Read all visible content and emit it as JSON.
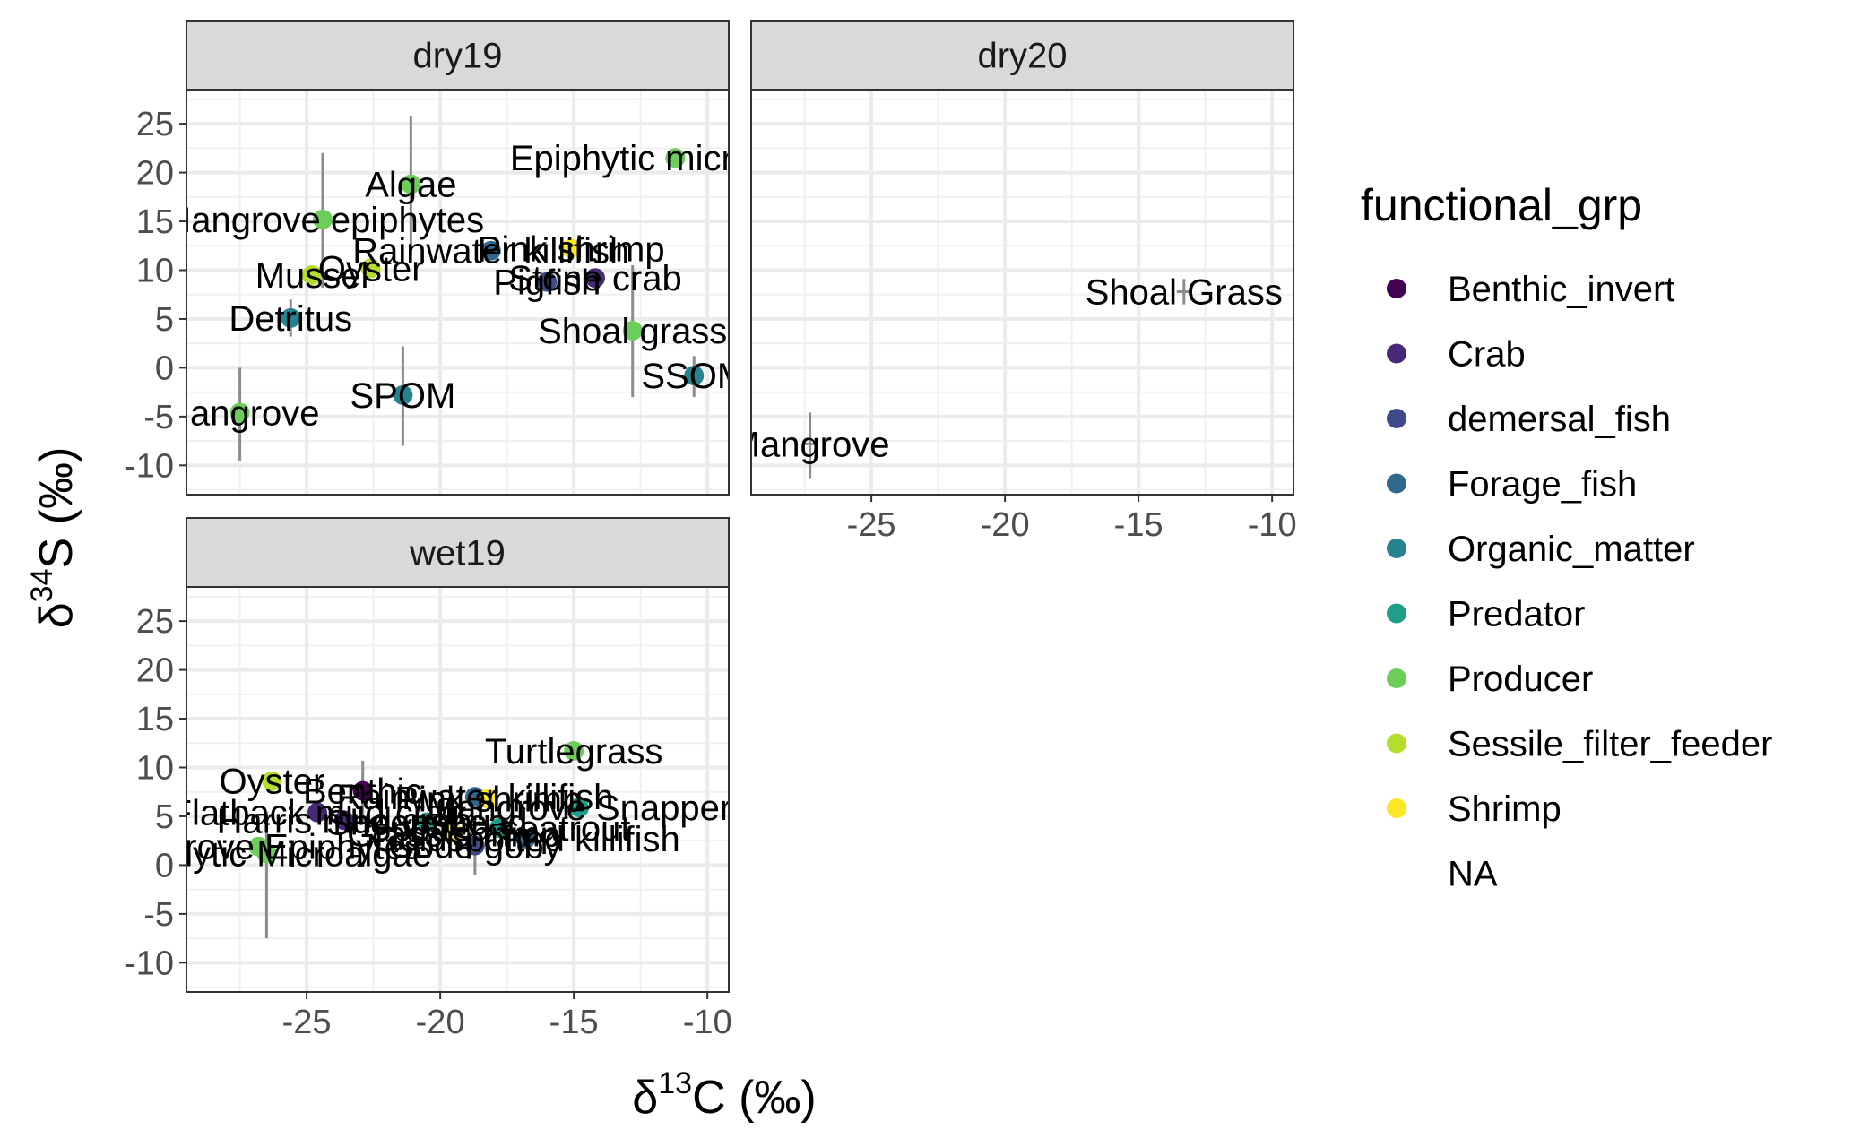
{
  "chart_data": {
    "type": "scatter",
    "xlabel_prefix": "δ",
    "xlabel_sup": "13",
    "xlabel_suffix": "C (‰)",
    "ylabel_prefix": "δ",
    "ylabel_sup": "34",
    "ylabel_suffix": "S (‰)",
    "xlim": [
      -29.5,
      -9.2
    ],
    "ylim": [
      -13,
      28.5
    ],
    "x_ticks": [
      -25,
      -20,
      -15,
      -10
    ],
    "y_ticks": [
      -10,
      -5,
      0,
      5,
      10,
      15,
      20,
      25
    ],
    "grid": true,
    "legend_position": "right",
    "legend_title": "functional_grp",
    "legend": [
      {
        "name": "Benthic_invert",
        "color": "#440154"
      },
      {
        "name": "Crab",
        "color": "#482878"
      },
      {
        "name": "demersal_fish",
        "color": "#3E4A89"
      },
      {
        "name": "Forage_fish",
        "color": "#31688E"
      },
      {
        "name": "Organic_matter",
        "color": "#26828E"
      },
      {
        "name": "Predator",
        "color": "#1F9E89"
      },
      {
        "name": "Producer",
        "color": "#6CCE59"
      },
      {
        "name": "Sessile_filter_feeder",
        "color": "#B4DE2C"
      },
      {
        "name": "Shrimp",
        "color": "#FDE725"
      },
      {
        "name": "NA",
        "color": null
      }
    ],
    "panels": [
      {
        "title": "dry19",
        "points": [
          {
            "label": "Epiphytic microalgae",
            "x": -11.2,
            "y": 21.5,
            "ylo": 21.5,
            "yhi": 21.5,
            "color": "#6CCE59"
          },
          {
            "label": "Algae",
            "x": -21.1,
            "y": 18.8,
            "ylo": 11.5,
            "yhi": 25.8,
            "color": "#6CCE59"
          },
          {
            "label": "Mangrove epiphytes",
            "x": -24.4,
            "y": 15.2,
            "ylo": 8.2,
            "yhi": 22.0,
            "color": "#6CCE59"
          },
          {
            "label": "Pink shrimp",
            "x": -15.1,
            "y": 12.2,
            "ylo": 12.2,
            "yhi": 12.2,
            "color": "#FDE725"
          },
          {
            "label": "Rainwater killifish",
            "x": -18.1,
            "y": 12.0,
            "ylo": 12.0,
            "yhi": 12.0,
            "color": "#31688E"
          },
          {
            "label": "Oyster",
            "x": -22.6,
            "y": 10.2,
            "ylo": 10.2,
            "yhi": 10.2,
            "color": "#B4DE2C"
          },
          {
            "label": "Mussel",
            "x": -24.8,
            "y": 9.5,
            "ylo": 9.5,
            "yhi": 9.5,
            "color": "#B4DE2C"
          },
          {
            "label": "Stone crab",
            "x": -14.2,
            "y": 9.2,
            "ylo": 9.2,
            "yhi": 9.2,
            "color": "#482878"
          },
          {
            "label": "Pigfish",
            "x": -16.0,
            "y": 8.8,
            "ylo": 8.8,
            "yhi": 8.8,
            "color": "#3E4A89"
          },
          {
            "label": "Detritus",
            "x": -25.6,
            "y": 5.1,
            "ylo": 3.2,
            "yhi": 7.0,
            "color": "#26828E"
          },
          {
            "label": "Shoal grass",
            "x": -12.8,
            "y": 3.8,
            "ylo": -3.0,
            "yhi": 10.5,
            "color": "#6CCE59"
          },
          {
            "label": "SSOM",
            "x": -10.5,
            "y": -0.8,
            "ylo": -3.0,
            "yhi": 1.2,
            "color": "#26828E"
          },
          {
            "label": "SPOM",
            "x": -21.4,
            "y": -2.8,
            "ylo": -8.0,
            "yhi": 2.2,
            "color": "#26828E"
          },
          {
            "label": "Mangrove",
            "x": -27.5,
            "y": -4.6,
            "ylo": -9.5,
            "yhi": 0.0,
            "color": "#6CCE59"
          }
        ]
      },
      {
        "title": "dry20",
        "points": [
          {
            "label": "Shoal Grass",
            "x": -13.3,
            "y": 7.8,
            "ylo": 6.5,
            "yhi": 9.1,
            "color": null
          },
          {
            "label": "Mangrove",
            "x": -27.3,
            "y": -7.8,
            "ylo": -11.3,
            "yhi": -4.6,
            "color": null
          }
        ]
      },
      {
        "title": "wet19",
        "points": [
          {
            "label": "Turtlegrass",
            "x": -15.0,
            "y": 11.7,
            "ylo": 11.7,
            "yhi": 11.7,
            "color": "#6CCE59"
          },
          {
            "label": "Oyster",
            "x": -26.3,
            "y": 8.6,
            "ylo": 8.6,
            "yhi": 8.6,
            "color": "#B4DE2C"
          },
          {
            "label": "Benthic",
            "x": -22.9,
            "y": 7.6,
            "ylo": 4.5,
            "yhi": 10.7,
            "color": "#440154"
          },
          {
            "label": "Rainwater killifish",
            "x": -18.7,
            "y": 7.0,
            "ylo": 7.0,
            "yhi": 7.0,
            "color": "#31688E"
          },
          {
            "label": "Pink shrimp",
            "x": -18.2,
            "y": 6.8,
            "ylo": 6.8,
            "yhi": 6.8,
            "color": "#FDE725"
          },
          {
            "label": "Mangrove Snapper",
            "x": -14.8,
            "y": 5.9,
            "ylo": 5.9,
            "yhi": 5.9,
            "color": "#1F9E89"
          },
          {
            "label": "Flatback mud crab",
            "x": -24.6,
            "y": 5.4,
            "ylo": 5.4,
            "yhi": 5.4,
            "color": "#482878"
          },
          {
            "label": "Harris mud crab",
            "x": -23.6,
            "y": 4.6,
            "ylo": 4.6,
            "yhi": 4.6,
            "color": "#482878"
          },
          {
            "label": "Sheepshead",
            "x": -20.5,
            "y": 4.4,
            "ylo": 4.4,
            "yhi": 4.4,
            "color": "#1F9E89"
          },
          {
            "label": "Spotted seatrout",
            "x": -17.8,
            "y": 3.8,
            "ylo": 3.8,
            "yhi": 3.8,
            "color": "#1F9E89"
          },
          {
            "label": "Grass shrimp",
            "x": -19.5,
            "y": 3.2,
            "ylo": 3.2,
            "yhi": 3.2,
            "color": "#FDE725"
          },
          {
            "label": "Goldspotted killifish",
            "x": -16.8,
            "y": 2.7,
            "ylo": 2.7,
            "yhi": 2.7,
            "color": "#31688E"
          },
          {
            "label": "Code goby",
            "x": -18.7,
            "y": 2.0,
            "ylo": -1.0,
            "yhi": 5.0,
            "color": "#3E4A89"
          },
          {
            "label": "Mangrove Epiphytes",
            "x": -26.8,
            "y": 1.9,
            "ylo": 1.9,
            "yhi": 1.9,
            "color": "#6CCE59"
          },
          {
            "label": "Epiphytic Microalgae",
            "x": -26.5,
            "y": 1.2,
            "ylo": -7.5,
            "yhi": 5.5,
            "color": "#6CCE59"
          }
        ]
      }
    ]
  }
}
